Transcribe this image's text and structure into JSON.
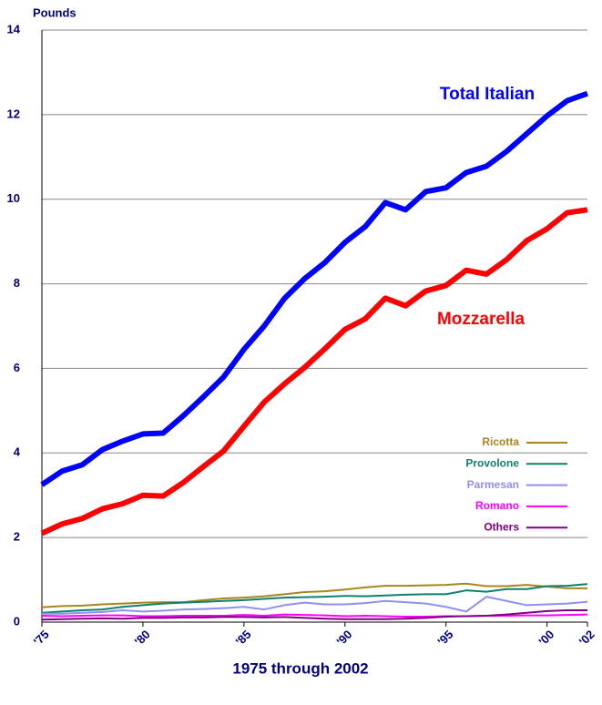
{
  "chart_data": {
    "type": "line",
    "y_label": "Pounds",
    "x_label": "1975 through 2002",
    "x": [
      1975,
      1976,
      1977,
      1978,
      1979,
      1980,
      1981,
      1982,
      1983,
      1984,
      1985,
      1986,
      1987,
      1988,
      1989,
      1990,
      1991,
      1992,
      1993,
      1994,
      1995,
      1996,
      1997,
      1998,
      1999,
      2000,
      2001,
      2002
    ],
    "xlim": [
      1975,
      2002
    ],
    "xticks": [
      {
        "value": 1975,
        "label": "'75"
      },
      {
        "value": 1980,
        "label": "'80"
      },
      {
        "value": 1985,
        "label": "'85"
      },
      {
        "value": 1990,
        "label": "'90"
      },
      {
        "value": 1995,
        "label": "'95"
      },
      {
        "value": 2000,
        "label": "'00"
      },
      {
        "value": 2002,
        "label": "'02"
      }
    ],
    "ylim": [
      0,
      14
    ],
    "yticks": [
      0,
      2,
      4,
      6,
      8,
      10,
      12,
      14
    ],
    "grid": true,
    "series": [
      {
        "name": "Total Italian",
        "color": "#0000ff",
        "values": [
          3.25,
          3.57,
          3.72,
          4.08,
          4.28,
          4.45,
          4.47,
          4.88,
          5.33,
          5.8,
          6.45,
          7.0,
          7.65,
          8.12,
          8.5,
          8.98,
          9.35,
          9.92,
          9.75,
          10.18,
          10.27,
          10.63,
          10.78,
          11.13,
          11.55,
          11.97,
          12.33,
          12.5
        ]
      },
      {
        "name": "Mozzarella",
        "color": "#ff0000",
        "values": [
          2.1,
          2.32,
          2.45,
          2.68,
          2.8,
          3.0,
          2.98,
          3.3,
          3.68,
          4.05,
          4.63,
          5.2,
          5.63,
          6.02,
          6.46,
          6.92,
          7.17,
          7.66,
          7.48,
          7.83,
          7.96,
          8.32,
          8.23,
          8.57,
          9.02,
          9.3,
          9.68,
          9.75
        ]
      },
      {
        "name": "Ricotta",
        "color": "#a8861e",
        "values": [
          0.35,
          0.38,
          0.39,
          0.42,
          0.44,
          0.46,
          0.47,
          0.47,
          0.52,
          0.56,
          0.58,
          0.61,
          0.66,
          0.71,
          0.73,
          0.77,
          0.82,
          0.86,
          0.86,
          0.87,
          0.88,
          0.91,
          0.85,
          0.85,
          0.88,
          0.84,
          0.8,
          0.8
        ]
      },
      {
        "name": "Provolone",
        "color": "#10806e",
        "values": [
          0.22,
          0.25,
          0.28,
          0.3,
          0.36,
          0.4,
          0.44,
          0.46,
          0.48,
          0.5,
          0.52,
          0.55,
          0.58,
          0.59,
          0.6,
          0.62,
          0.61,
          0.63,
          0.65,
          0.66,
          0.66,
          0.75,
          0.72,
          0.78,
          0.78,
          0.85,
          0.86,
          0.9
        ]
      },
      {
        "name": "Parmesan",
        "color": "#9090f0",
        "values": [
          0.2,
          0.2,
          0.22,
          0.24,
          0.28,
          0.25,
          0.27,
          0.3,
          0.31,
          0.33,
          0.36,
          0.3,
          0.4,
          0.46,
          0.42,
          0.42,
          0.45,
          0.5,
          0.47,
          0.44,
          0.36,
          0.25,
          0.6,
          0.5,
          0.4,
          0.42,
          0.44,
          0.48
        ]
      },
      {
        "name": "Romano",
        "color": "#ff00ff",
        "values": [
          0.15,
          0.14,
          0.15,
          0.16,
          0.16,
          0.14,
          0.14,
          0.15,
          0.15,
          0.15,
          0.17,
          0.15,
          0.18,
          0.17,
          0.16,
          0.14,
          0.15,
          0.14,
          0.13,
          0.13,
          0.14,
          0.14,
          0.15,
          0.15,
          0.16,
          0.16,
          0.17,
          0.18
        ]
      },
      {
        "name": "Others",
        "color": "#800080",
        "values": [
          0.06,
          0.07,
          0.08,
          0.09,
          0.08,
          0.1,
          0.1,
          0.11,
          0.11,
          0.12,
          0.12,
          0.11,
          0.12,
          0.1,
          0.08,
          0.07,
          0.07,
          0.07,
          0.08,
          0.1,
          0.13,
          0.14,
          0.15,
          0.18,
          0.22,
          0.26,
          0.28,
          0.28
        ]
      }
    ]
  }
}
